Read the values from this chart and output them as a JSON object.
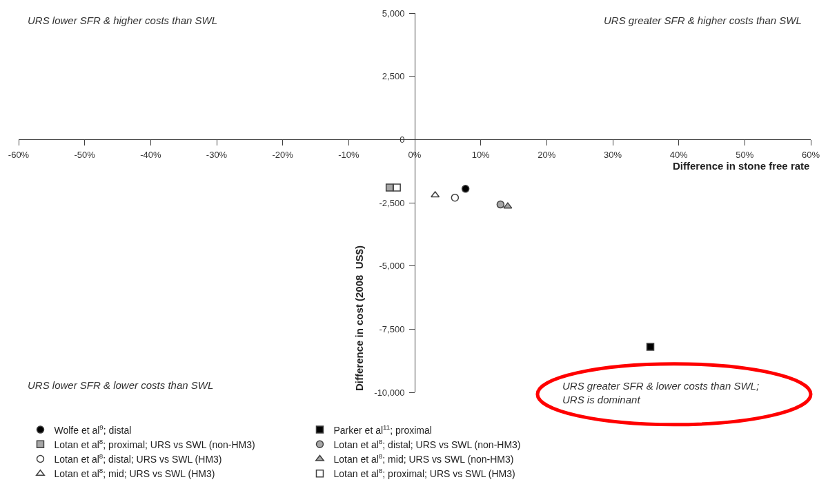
{
  "chart_data": {
    "type": "scatter",
    "xlabel": "Difference in stone free rate",
    "ylabel": "Difference in cost (2008  US$)",
    "xlim": [
      -60,
      60
    ],
    "ylim": [
      -10000,
      5000
    ],
    "xticks": [
      {
        "value": -60,
        "label": "-60%"
      },
      {
        "value": -50,
        "label": "-50%"
      },
      {
        "value": -40,
        "label": "-40%"
      },
      {
        "value": -30,
        "label": "-30%"
      },
      {
        "value": -20,
        "label": "-20%"
      },
      {
        "value": -10,
        "label": "-10%"
      },
      {
        "value": 0,
        "label": "0%"
      },
      {
        "value": 10,
        "label": "10%"
      },
      {
        "value": 20,
        "label": "20%"
      },
      {
        "value": 30,
        "label": "30%"
      },
      {
        "value": 40,
        "label": "40%"
      },
      {
        "value": 50,
        "label": "50%"
      },
      {
        "value": 60,
        "label": "60%"
      }
    ],
    "yticks": [
      {
        "value": -10000,
        "label": "-10,000"
      },
      {
        "value": -7500,
        "label": "-7,500"
      },
      {
        "value": -5000,
        "label": "-5,000"
      },
      {
        "value": -2500,
        "label": "-2,500"
      },
      0,
      {
        "value": 2500,
        "label": "2,500"
      },
      {
        "value": 5000,
        "label": "5,000"
      }
    ],
    "legend": "bottom",
    "series": [
      {
        "name": "Wolfe et al$^{9}$; distal",
        "marker": "circle",
        "color": "#000000",
        "x": [
          7.7
        ],
        "values": [
          -1950
        ]
      },
      {
        "name": "Parker et al$^{11}$; proximal",
        "marker": "square",
        "color": "#000000",
        "x": [
          35.7
        ],
        "values": [
          -8200
        ]
      },
      {
        "name": "Lotan et al$^{8}$; proximal; URS vs SWL (non-HM3)",
        "marker": "square",
        "color": "#a6a6a6",
        "x": [
          -3.8
        ],
        "values": [
          -1900
        ]
      },
      {
        "name": "Lotan et al$^{8}$; distal; URS vs SWL (non-HM3)",
        "marker": "circle",
        "color": "#a6a6a6",
        "x": [
          13.0
        ],
        "values": [
          -2570
        ]
      },
      {
        "name": "Lotan et al$^{8}$; distal; URS vs SWL (HM3)",
        "marker": "circle",
        "color": "#ffffff",
        "x": [
          6.1
        ],
        "values": [
          -2300
        ]
      },
      {
        "name": "Lotan et al$^{8}$; mid; URS vs SWL (non-HM3)",
        "marker": "triangle",
        "color": "#a6a6a6",
        "x": [
          14.1
        ],
        "values": [
          -2640
        ]
      },
      {
        "name": "Lotan et al$^{8}$; mid; URS vs SWL (HM3)",
        "marker": "triangle",
        "color": "#ffffff",
        "x": [
          3.1
        ],
        "values": [
          -2200
        ]
      },
      {
        "name": "Lotan et al$^{8}$; proximal; URS vs SWL (HM3)",
        "marker": "square",
        "color": "#ffffff",
        "x": [
          -2.7
        ],
        "values": [
          -1900
        ]
      }
    ],
    "annotations": [
      "URS lower SFR & higher costs than SWL",
      "URS greater SFR & higher costs than SWL",
      "URS lower SFR & lower costs than SWL",
      "URS greater SFR & lower costs than SWL;\nURS is dominant"
    ]
  }
}
